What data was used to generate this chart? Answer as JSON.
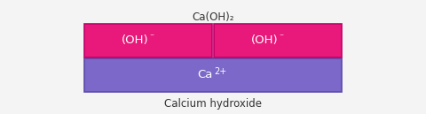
{
  "title_top": "Calcium hydroxide",
  "title_bottom": "Ca(OH)₂",
  "top_bar": {
    "label": "Ca",
    "superscript": "2+",
    "color": "#7B68C8",
    "edge_color": "#5a4aaa",
    "text_color": "#ffffff"
  },
  "bottom_bars": [
    {
      "label": "(OH)",
      "superscript": "⁻",
      "color": "#E8197A",
      "edge_color": "#c0006a",
      "text_color": "#ffffff"
    },
    {
      "label": "(OH)",
      "superscript": "⁻",
      "color": "#E8197A",
      "edge_color": "#c0006a",
      "text_color": "#ffffff"
    }
  ],
  "background_color": "#f4f4f4",
  "title_fontsize": 8.5,
  "bar_fontsize": 9.5,
  "sup_fontsize": 7.0
}
